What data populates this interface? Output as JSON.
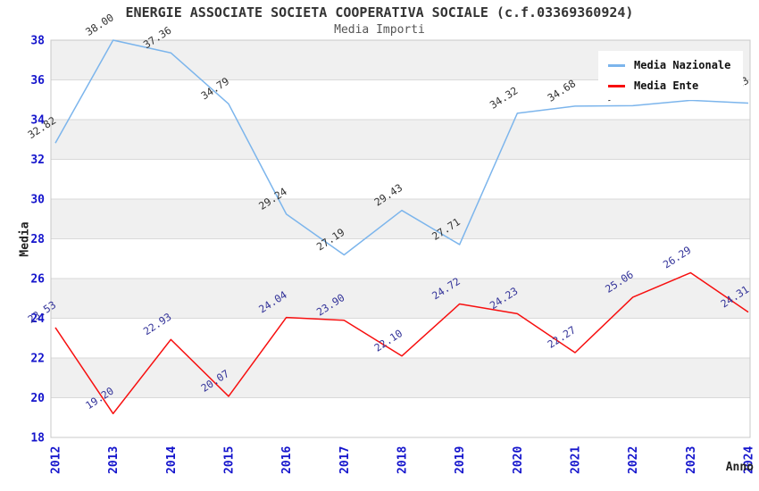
{
  "chart_data": {
    "type": "line",
    "title": "ENERGIE ASSOCIATE SOCIETA COOPERATIVA SOCIALE (c.f.03369360924)",
    "subtitle": "Media Importi",
    "xlabel": "Anno",
    "ylabel": "Media",
    "categories": [
      "2012",
      "2013",
      "2014",
      "2015",
      "2016",
      "2017",
      "2018",
      "2019",
      "2020",
      "2021",
      "2022",
      "2023",
      "2024"
    ],
    "ylim": [
      18,
      38
    ],
    "ytick_step": 2,
    "grid": true,
    "legend_position": "top-right",
    "colors": {
      "axis_tick_label": "#1414cc",
      "gridline": "#d9d9d9",
      "band_fill": "#f0f0f0",
      "plot_border": "#c8c8c8",
      "title": "#333333",
      "subtitle": "#555555"
    },
    "series": [
      {
        "name": "Media Nazionale",
        "color": "#7cb5ec",
        "label_color": "#333333",
        "values": [
          32.82,
          38.0,
          37.36,
          34.79,
          29.24,
          27.19,
          29.43,
          27.71,
          34.32,
          34.68,
          34.7,
          34.97,
          34.83
        ]
      },
      {
        "name": "Media Ente",
        "color": "#f70f0f",
        "label_color": "#333399",
        "values": [
          23.53,
          19.2,
          22.93,
          20.07,
          24.04,
          23.9,
          22.1,
          24.72,
          24.23,
          22.27,
          25.06,
          26.29,
          24.31
        ]
      }
    ]
  }
}
